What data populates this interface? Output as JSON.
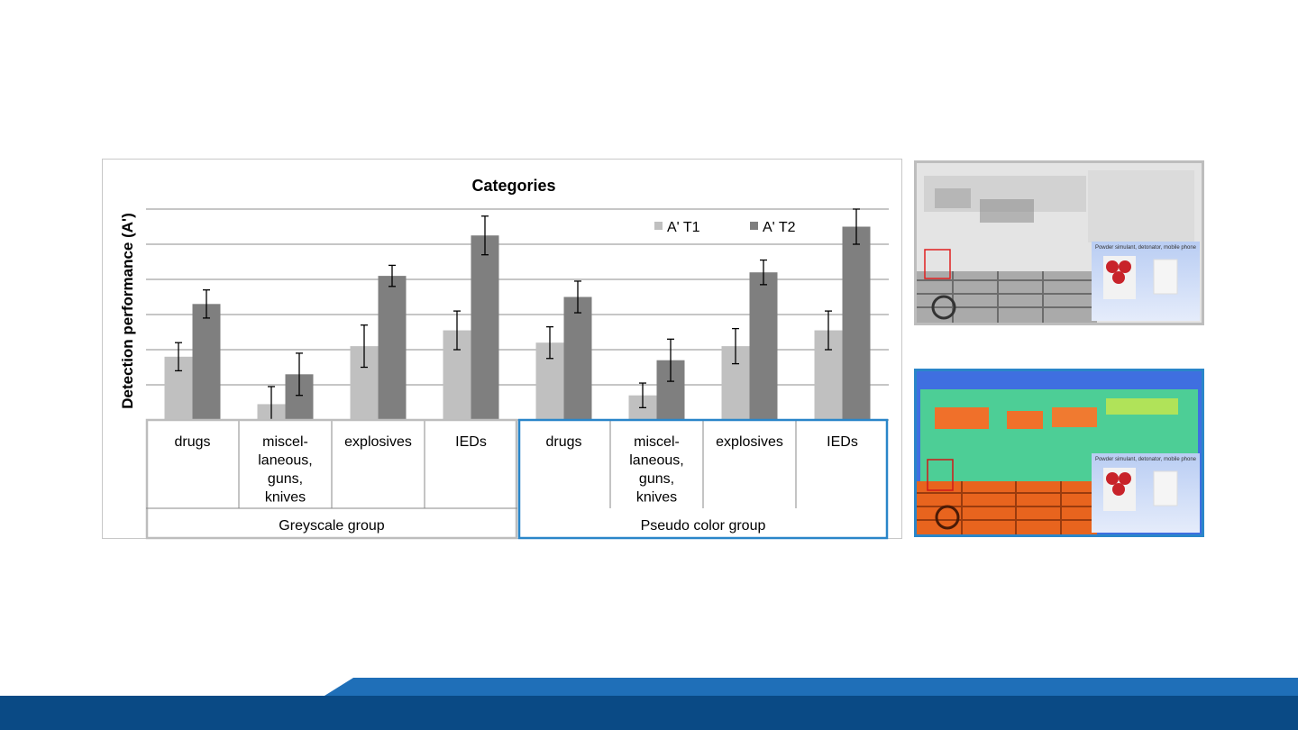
{
  "chart_data": {
    "type": "bar",
    "title": "Categories",
    "ylabel": "Detection performance (A')",
    "categories": [
      "drugs",
      "miscel-laneous, guns, knives",
      "explosives",
      "IEDs",
      "drugs",
      "miscel-laneous, guns, knives",
      "explosives",
      "IEDs"
    ],
    "category_lines": [
      [
        "drugs"
      ],
      [
        "miscel-",
        "laneous,",
        "guns,",
        "knives"
      ],
      [
        "explosives"
      ],
      [
        "IEDs"
      ],
      [
        "drugs"
      ],
      [
        "miscel-",
        "laneous,",
        "guns,",
        "knives"
      ],
      [
        "explosives"
      ],
      [
        "IEDs"
      ]
    ],
    "groups": [
      {
        "label": "Greyscale group",
        "categories": [
          0,
          1,
          2,
          3
        ]
      },
      {
        "label": "Pseudo color group",
        "categories": [
          4,
          5,
          6,
          7
        ]
      }
    ],
    "series": [
      {
        "name": "A' T1",
        "color": "#c0c0c0",
        "values": [
          0.36,
          0.09,
          0.42,
          0.51,
          0.44,
          0.14,
          0.42,
          0.51
        ],
        "errors": [
          0.08,
          0.1,
          0.12,
          0.11,
          0.09,
          0.07,
          0.1,
          0.11
        ]
      },
      {
        "name": "A' T2",
        "color": "#7f7f7f",
        "values": [
          0.66,
          0.26,
          0.82,
          1.05,
          0.7,
          0.34,
          0.84,
          1.1
        ],
        "errors": [
          0.08,
          0.12,
          0.06,
          0.11,
          0.09,
          0.12,
          0.07,
          0.1
        ]
      }
    ],
    "ylim": [
      0,
      1.2
    ],
    "grid": true,
    "legend_position": "top-right",
    "highlight_color": "#2a86c9"
  },
  "images": {
    "grey": {
      "caption": "Powder simulant, detonator, mobile phone"
    },
    "color": {
      "caption": "Powder simulant, detonator, mobile phone"
    }
  },
  "colors": {
    "footer_dark": "#0a4a85",
    "footer_light": "#1f6fb8"
  }
}
